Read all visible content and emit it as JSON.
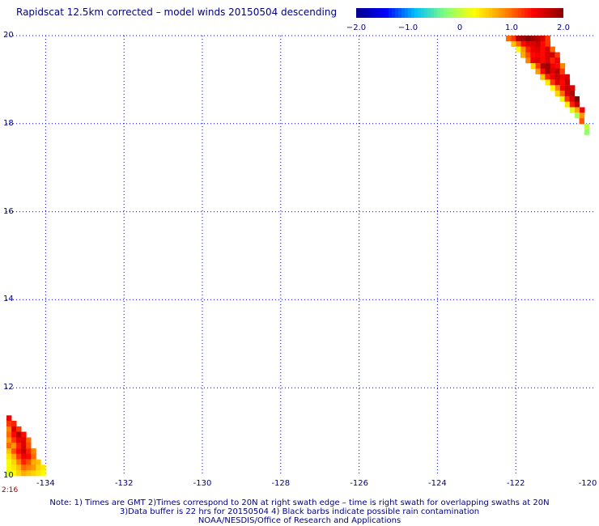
{
  "title": "Rapidscat 12.5km corrected – model winds 20150504 descending",
  "colorbar": {
    "min": -2.0,
    "max": 2.0,
    "tick_labels": [
      "−2.0",
      "−1.0",
      "0",
      "1.0",
      "2.0"
    ],
    "tick_values": [
      -2.0,
      -1.0,
      0,
      1.0,
      2.0
    ],
    "colors": [
      "#00008b",
      "#0000ff",
      "#00bfff",
      "#7fff7f",
      "#ffff00",
      "#ff8c00",
      "#ff0000",
      "#8b0000"
    ]
  },
  "map": {
    "lat_range": [
      10,
      20
    ],
    "lon_range": [
      -135,
      -120
    ],
    "lat_labels": [
      "20",
      "18",
      "16",
      "14",
      "12",
      "10"
    ],
    "lat_values": [
      20,
      18,
      16,
      14,
      12,
      10
    ],
    "lon_labels": [
      "-134",
      "-132",
      "-130",
      "-128",
      "-126",
      "-124",
      "-122",
      "-120"
    ],
    "lon_values": [
      -134,
      -132,
      -130,
      -128,
      -126,
      -124,
      -122,
      -120
    ],
    "grid_color": "#0000cd",
    "time_label": "2:16"
  },
  "notes": [
    "Note: 1) Times are GMT 2)Times correspond to 20N at right swath edge – time is right swath for overlapping swaths at 20N",
    "3)Data buffer is 22 hrs for 20150504 4) Black barbs indicate possible rain contamination",
    "NOAA/NESDIS/Office of Research and Applications"
  ],
  "chart_data": {
    "type": "heatmap",
    "title": "Rapidscat 12.5km corrected – model winds 20150504 descending",
    "xlabel": "",
    "ylabel": "",
    "xlim": [
      -135,
      -120
    ],
    "ylim": [
      10,
      20
    ],
    "value_range": [
      -2.0,
      2.0
    ],
    "cell_size_deg": 0.125,
    "swaths": [
      {
        "region": "northeast",
        "rows": [
          {
            "lat": 19.94,
            "lon_start": -122.25,
            "values": [
              1.0,
              1.2,
              1.8,
              1.9,
              2.0,
              1.9,
              1.8,
              1.6,
              1.2
            ]
          },
          {
            "lat": 19.81,
            "lon_start": -122.12,
            "values": [
              0.6,
              1.0,
              1.4,
              1.6,
              1.6,
              1.7,
              1.4,
              1.2
            ]
          },
          {
            "lat": 19.69,
            "lon_start": -122.0,
            "values": [
              0.3,
              0.8,
              1.3,
              1.5,
              1.6,
              1.4,
              1.6,
              1.0
            ]
          },
          {
            "lat": 19.56,
            "lon_start": -121.88,
            "values": [
              0.7,
              1.1,
              1.4,
              1.5,
              1.4,
              1.6,
              1.7,
              1.2
            ]
          },
          {
            "lat": 19.44,
            "lon_start": -121.75,
            "values": [
              0.9,
              1.5,
              1.6,
              1.4,
              1.6,
              1.3,
              1.5
            ]
          },
          {
            "lat": 19.31,
            "lon_start": -121.62,
            "values": [
              0.5,
              1.2,
              1.8,
              1.9,
              1.5,
              1.4,
              0.9
            ]
          },
          {
            "lat": 19.19,
            "lon_start": -121.5,
            "values": [
              0.8,
              1.4,
              1.9,
              1.6,
              1.8,
              1.2
            ]
          },
          {
            "lat": 19.06,
            "lon_start": -121.38,
            "values": [
              0.6,
              1.3,
              1.5,
              1.7,
              1.5,
              1.6
            ]
          },
          {
            "lat": 18.94,
            "lon_start": -121.25,
            "values": [
              0.4,
              1.2,
              1.6,
              1.4,
              1.7
            ]
          },
          {
            "lat": 18.81,
            "lon_start": -121.12,
            "values": [
              0.3,
              0.9,
              1.5,
              1.7,
              1.6
            ]
          },
          {
            "lat": 18.69,
            "lon_start": -121.0,
            "values": [
              0.5,
              1.0,
              1.6,
              1.8
            ]
          },
          {
            "lat": 18.56,
            "lon_start": -120.88,
            "values": [
              0.2,
              1.2,
              1.6,
              2.0
            ]
          },
          {
            "lat": 18.44,
            "lon_start": -120.75,
            "values": [
              0.4,
              1.3,
              1.7
            ]
          },
          {
            "lat": 18.31,
            "lon_start": -120.62,
            "values": [
              0.1,
              0.7,
              1.5
            ]
          },
          {
            "lat": 18.19,
            "lon_start": -120.5,
            "values": [
              -0.1,
              0.8
            ]
          },
          {
            "lat": 18.06,
            "lon_start": -120.38,
            "values": [
              1.1
            ]
          },
          {
            "lat": 17.94,
            "lon_start": -120.25,
            "values": [
              0.0
            ]
          },
          {
            "lat": 17.81,
            "lon_start": -120.25,
            "values": [
              -0.2
            ]
          }
        ]
      },
      {
        "region": "southwest",
        "rows": [
          {
            "lat": 11.31,
            "lon_start": -135.0,
            "values": [
              1.5
            ]
          },
          {
            "lat": 11.19,
            "lon_start": -135.0,
            "values": [
              1.2,
              1.3
            ]
          },
          {
            "lat": 11.06,
            "lon_start": -135.0,
            "values": [
              0.9,
              1.6,
              1.2
            ]
          },
          {
            "lat": 10.94,
            "lon_start": -135.0,
            "values": [
              1.0,
              1.4,
              1.8,
              1.4
            ]
          },
          {
            "lat": 10.81,
            "lon_start": -135.0,
            "values": [
              0.8,
              1.2,
              1.5,
              1.6,
              1.0
            ]
          },
          {
            "lat": 10.69,
            "lon_start": -135.0,
            "values": [
              1.0,
              0.8,
              1.3,
              1.6,
              1.1
            ]
          },
          {
            "lat": 10.56,
            "lon_start": -135.0,
            "values": [
              0.6,
              1.1,
              1.4,
              1.7,
              1.3,
              0.9
            ]
          },
          {
            "lat": 10.44,
            "lon_start": -135.0,
            "values": [
              0.4,
              0.7,
              1.2,
              1.5,
              1.4,
              1.0
            ]
          },
          {
            "lat": 10.31,
            "lon_start": -135.0,
            "values": [
              0.2,
              0.5,
              0.9,
              1.3,
              1.1,
              0.7,
              0.6
            ]
          },
          {
            "lat": 10.19,
            "lon_start": -135.0,
            "values": [
              0.3,
              0.4,
              0.6,
              1.0,
              0.9,
              0.8,
              0.5,
              0.4
            ]
          },
          {
            "lat": 10.06,
            "lon_start": -135.0,
            "values": [
              0.1,
              0.3,
              0.5,
              0.7,
              0.6,
              0.5,
              0.4,
              0.3
            ]
          }
        ]
      }
    ]
  }
}
